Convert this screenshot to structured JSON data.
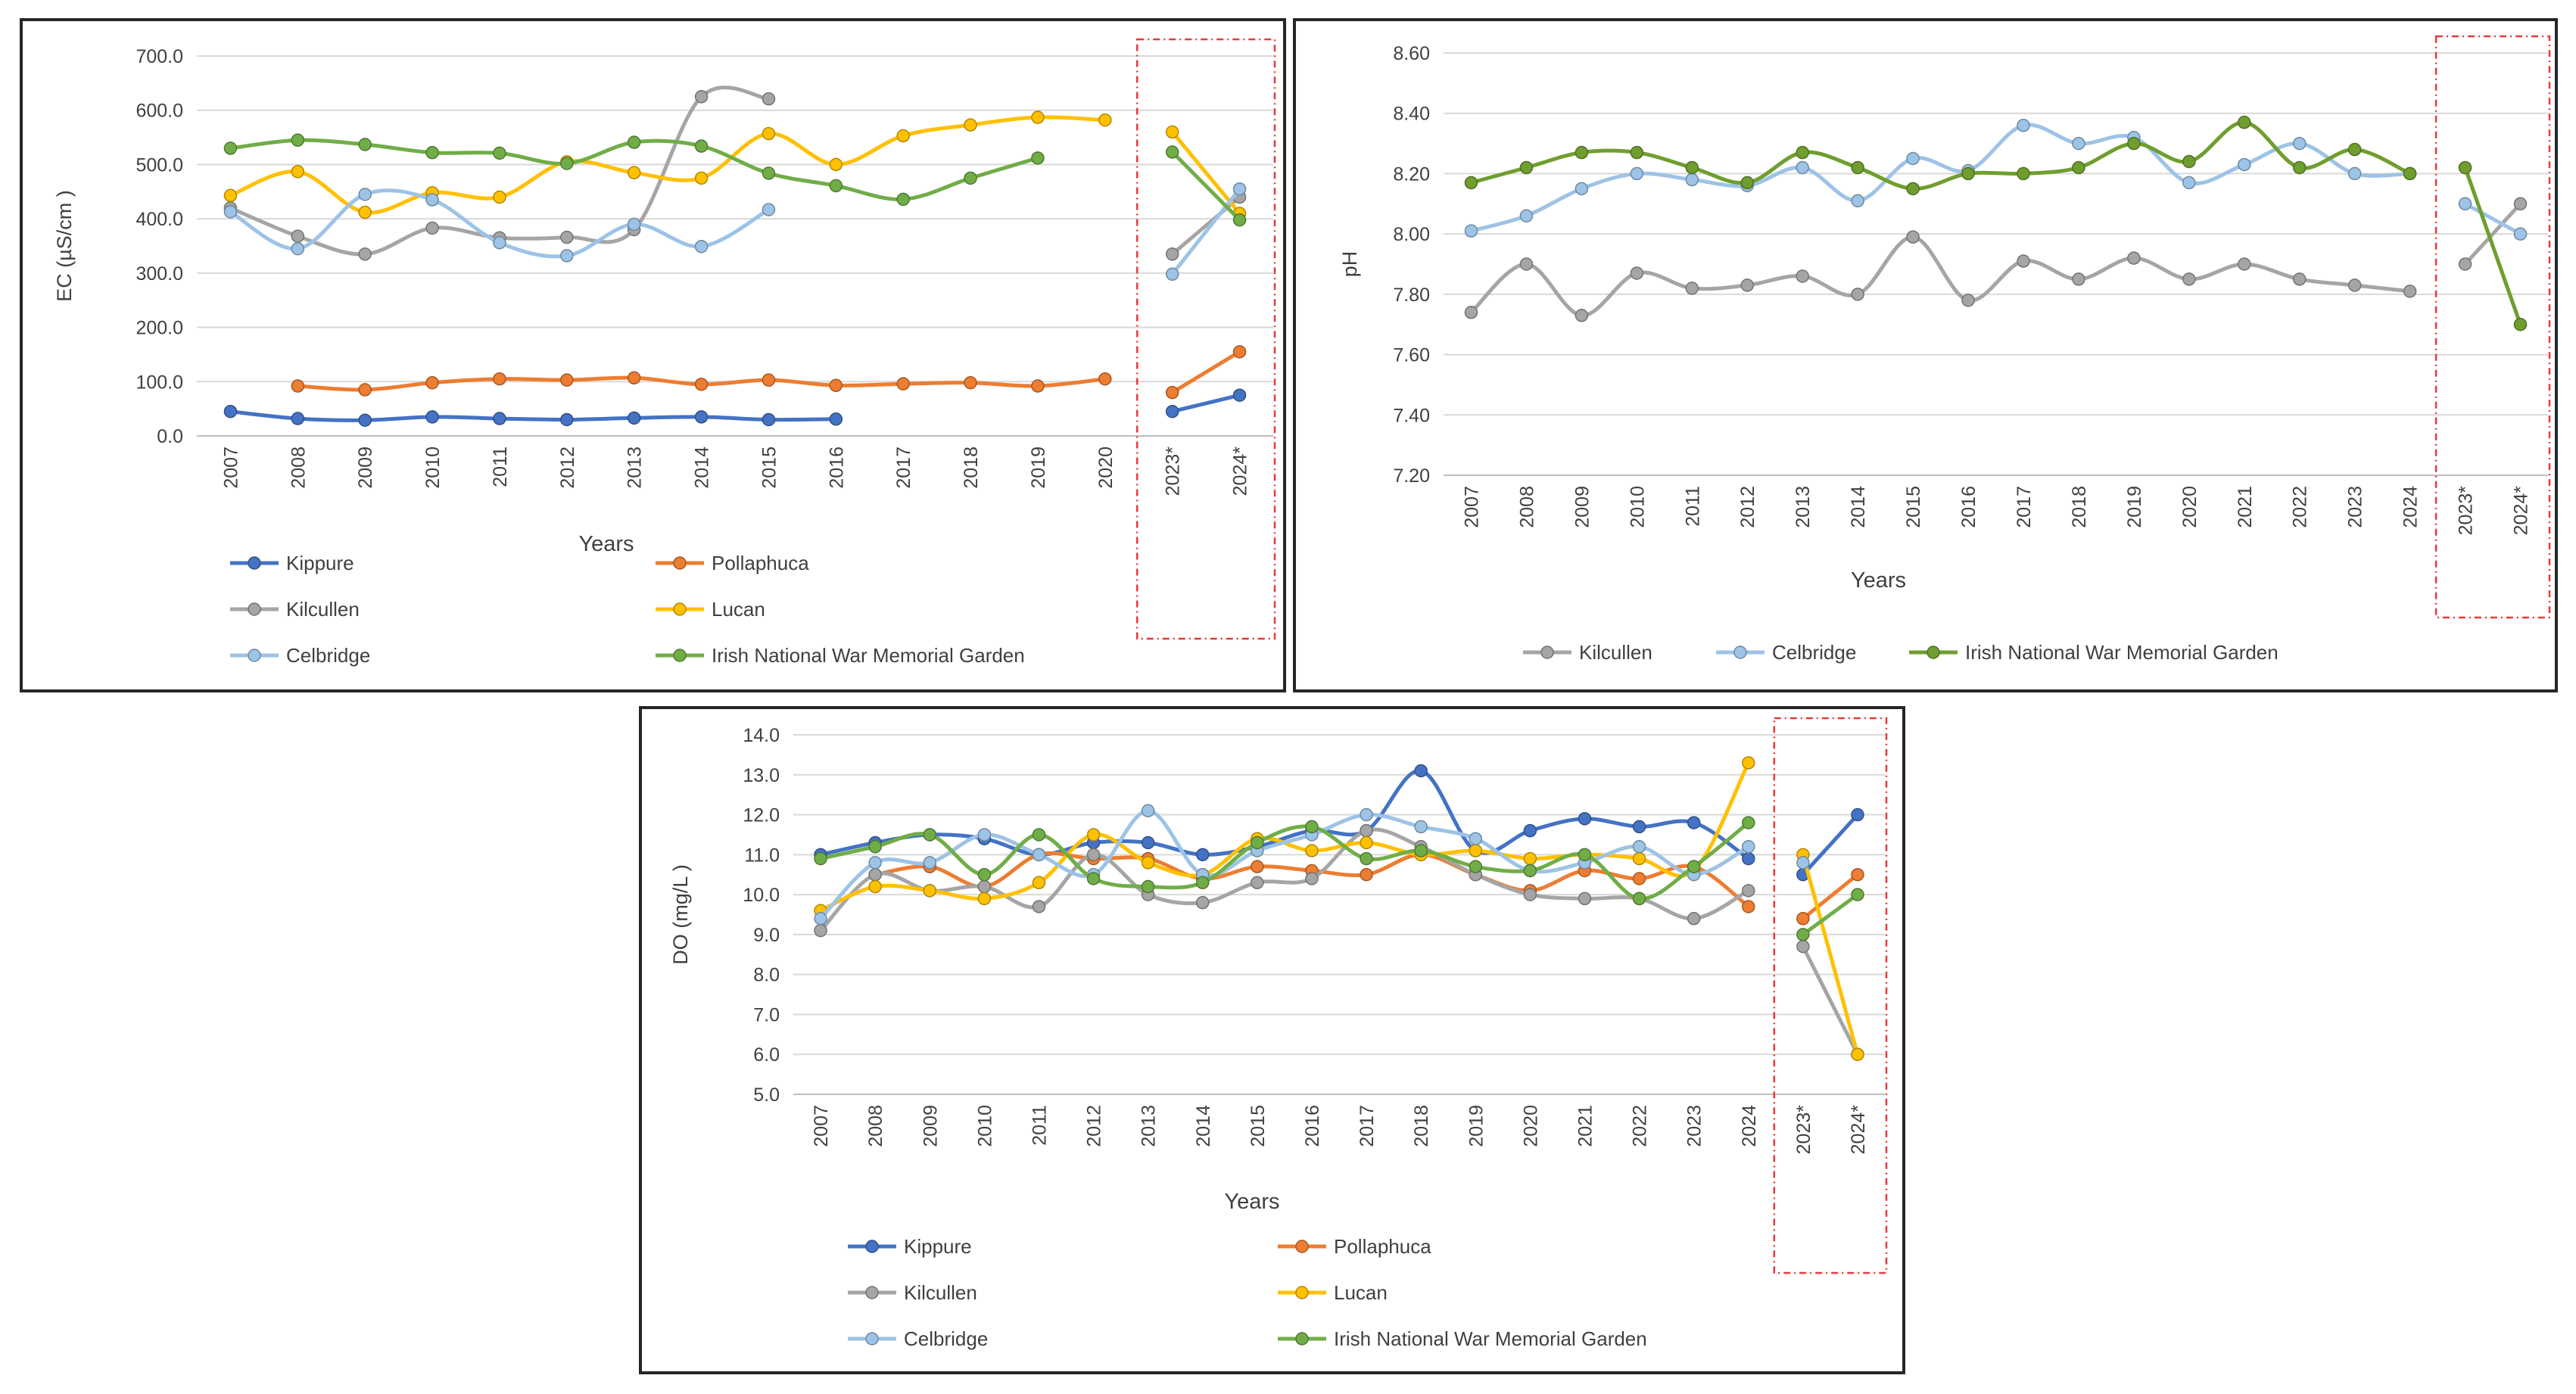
{
  "colors": {
    "kippure": "#4472C4",
    "pollaphuca": "#ED7D31",
    "kilcullen": "#A5A5A5",
    "lucan": "#FFC000",
    "celbridge": "#5B9BD5",
    "celbridge_light": "#9DC3E6",
    "inwmg": "#70AD47",
    "inwmg_ph": "#6F9E2F",
    "gridline": "#D9D9D9",
    "axis": "#BFBFBF",
    "highlight": "#E8393B"
  },
  "chart_data": [
    {
      "id": "ec",
      "type": "line",
      "title": "",
      "xlabel": "Years",
      "ylabel": "EC (µS/cm )",
      "ylim": [
        0,
        700
      ],
      "ytick_step": 100,
      "ytick_decimals": 1,
      "categories": [
        "2007",
        "2008",
        "2009",
        "2010",
        "2011",
        "2012",
        "2013",
        "2014",
        "2015",
        "2016",
        "2017",
        "2018",
        "2019",
        "2020",
        "2023*",
        "2024*"
      ],
      "highlight": [
        "2023*",
        "2024*"
      ],
      "legend": "bottom",
      "series": [
        {
          "key": "kippure",
          "name": "Kippure",
          "color_key": "kippure",
          "values": [
            45,
            32,
            29,
            35,
            32,
            30,
            33,
            35,
            30,
            31,
            null,
            null,
            null,
            null,
            45,
            75
          ]
        },
        {
          "key": "pollaphuca",
          "name": "Pollaphuca",
          "color_key": "pollaphuca",
          "values": [
            null,
            92,
            85,
            98,
            105,
            103,
            107,
            95,
            103,
            93,
            96,
            98,
            92,
            105,
            80,
            155
          ]
        },
        {
          "key": "kilcullen",
          "name": "Kilcullen",
          "color_key": "kilcullen",
          "values": [
            420,
            368,
            335,
            383,
            365,
            366,
            380,
            625,
            621,
            null,
            null,
            null,
            null,
            null,
            335,
            440
          ]
        },
        {
          "key": "lucan",
          "name": "Lucan",
          "color_key": "lucan",
          "values": [
            443,
            487,
            412,
            448,
            440,
            505,
            485,
            475,
            557,
            500,
            553,
            573,
            587,
            582,
            560,
            410
          ]
        },
        {
          "key": "celbridge",
          "name": "Celbridge",
          "color_key": "celbridge_light",
          "values": [
            413,
            345,
            445,
            435,
            356,
            332,
            390,
            349,
            417,
            null,
            null,
            null,
            null,
            null,
            298,
            455
          ]
        },
        {
          "key": "inwmg",
          "name": "Irish National War Memorial Garden",
          "color_key": "inwmg",
          "values": [
            530,
            545,
            537,
            522,
            521,
            502,
            541,
            534,
            484,
            461,
            436,
            475,
            512,
            null,
            523,
            398
          ]
        }
      ]
    },
    {
      "id": "ph",
      "type": "line",
      "title": "",
      "xlabel": "Years",
      "ylabel": "pH",
      "ylim": [
        7.2,
        8.6
      ],
      "ytick_step": 0.2,
      "ytick_decimals": 2,
      "categories": [
        "2007",
        "2008",
        "2009",
        "2010",
        "2011",
        "2012",
        "2013",
        "2014",
        "2015",
        "2016",
        "2017",
        "2018",
        "2019",
        "2020",
        "2021",
        "2022",
        "2023",
        "2024",
        "2023*",
        "2024*"
      ],
      "highlight": [
        "2023*",
        "2024*"
      ],
      "legend": "bottom",
      "series": [
        {
          "key": "kilcullen",
          "name": "Kilcullen",
          "color_key": "kilcullen",
          "values": [
            7.74,
            7.9,
            7.73,
            7.87,
            7.82,
            7.83,
            7.86,
            7.8,
            7.99,
            7.78,
            7.91,
            7.85,
            7.92,
            7.85,
            7.9,
            7.85,
            7.83,
            7.81,
            7.9,
            8.1
          ]
        },
        {
          "key": "celbridge",
          "name": "Celbridge",
          "color_key": "celbridge_light",
          "values": [
            8.01,
            8.06,
            8.15,
            8.2,
            8.18,
            8.16,
            8.22,
            8.11,
            8.25,
            8.21,
            8.36,
            8.3,
            8.32,
            8.17,
            8.23,
            8.3,
            8.2,
            8.2,
            8.1,
            8.0
          ]
        },
        {
          "key": "inwmg",
          "name": "Irish National War Memorial Garden",
          "color_key": "inwmg_ph",
          "values": [
            8.17,
            8.22,
            8.27,
            8.27,
            8.22,
            8.17,
            8.27,
            8.22,
            8.15,
            8.2,
            8.2,
            8.22,
            8.3,
            8.24,
            8.37,
            8.22,
            8.28,
            8.2,
            8.22,
            7.7
          ]
        }
      ]
    },
    {
      "id": "do",
      "type": "line",
      "title": "",
      "xlabel": "Years",
      "ylabel": "DO (mg/L )",
      "ylim": [
        5,
        14
      ],
      "ytick_step": 1,
      "ytick_decimals": 1,
      "categories": [
        "2007",
        "2008",
        "2009",
        "2010",
        "2011",
        "2012",
        "2013",
        "2014",
        "2015",
        "2016",
        "2017",
        "2018",
        "2019",
        "2020",
        "2021",
        "2022",
        "2023",
        "2024",
        "2023*",
        "2024*"
      ],
      "highlight": [
        "2023*",
        "2024*"
      ],
      "legend": "bottom",
      "series": [
        {
          "key": "kippure",
          "name": "Kippure",
          "color_key": "kippure",
          "values": [
            11.0,
            11.3,
            11.5,
            11.4,
            11.0,
            11.3,
            11.3,
            11.0,
            11.2,
            11.6,
            11.6,
            13.1,
            11.1,
            11.6,
            11.9,
            11.7,
            11.8,
            10.9,
            10.5,
            12.0
          ]
        },
        {
          "key": "pollaphuca",
          "name": "Pollaphuca",
          "color_key": "pollaphuca",
          "values": [
            null,
            10.5,
            10.7,
            10.2,
            11.0,
            10.9,
            10.9,
            10.4,
            10.7,
            10.6,
            10.5,
            11.0,
            10.5,
            10.1,
            10.6,
            10.4,
            10.7,
            9.7,
            9.4,
            10.5
          ]
        },
        {
          "key": "kilcullen",
          "name": "Kilcullen",
          "color_key": "kilcullen",
          "values": [
            9.1,
            10.5,
            10.1,
            10.2,
            9.7,
            11.0,
            10.0,
            9.8,
            10.3,
            10.4,
            11.6,
            11.2,
            10.5,
            10.0,
            9.9,
            9.9,
            9.4,
            10.1,
            8.7,
            6.0
          ]
        },
        {
          "key": "lucan",
          "name": "Lucan",
          "color_key": "lucan",
          "values": [
            9.6,
            10.2,
            10.1,
            9.9,
            10.3,
            11.5,
            10.8,
            10.5,
            11.4,
            11.1,
            11.3,
            11.0,
            11.1,
            10.9,
            11.0,
            10.9,
            10.6,
            13.3,
            11.0,
            6.0
          ]
        },
        {
          "key": "celbridge",
          "name": "Celbridge",
          "color_key": "celbridge_light",
          "values": [
            9.4,
            10.8,
            10.8,
            11.5,
            11.0,
            10.5,
            12.1,
            10.5,
            11.1,
            11.5,
            12.0,
            11.7,
            11.4,
            10.6,
            10.8,
            11.2,
            10.5,
            11.2,
            10.8,
            null
          ]
        },
        {
          "key": "inwmg",
          "name": "Irish National War Memorial Garden",
          "color_key": "inwmg",
          "values": [
            10.9,
            11.2,
            11.5,
            10.5,
            11.5,
            10.4,
            10.2,
            10.3,
            11.3,
            11.7,
            10.9,
            11.1,
            10.7,
            10.6,
            11.0,
            9.9,
            10.7,
            11.8,
            9.0,
            10.0
          ]
        }
      ]
    }
  ]
}
